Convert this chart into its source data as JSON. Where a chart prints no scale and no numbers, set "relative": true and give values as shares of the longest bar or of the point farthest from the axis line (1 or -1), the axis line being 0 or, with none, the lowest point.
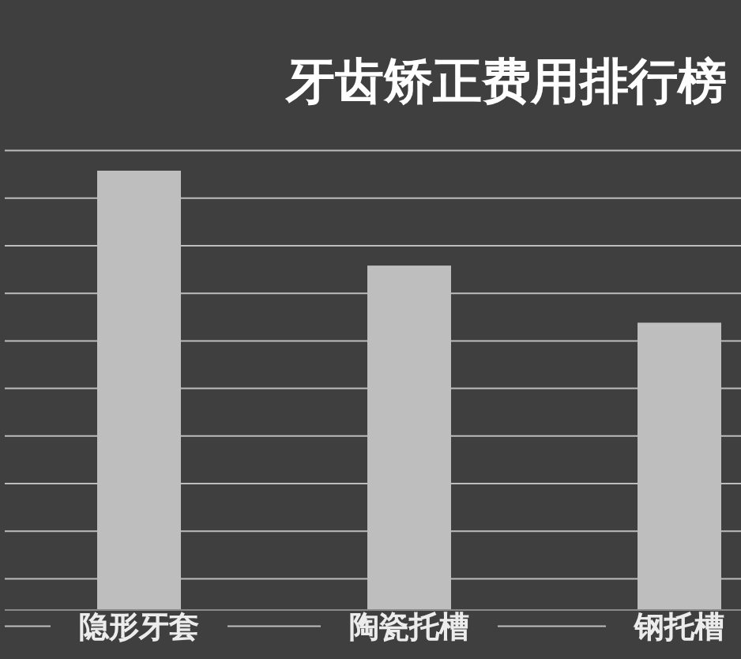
{
  "chart_data": {
    "type": "bar",
    "title": "牙齿矫正费用排行榜",
    "categories": [
      "隐形牙套",
      "陶瓷托槽",
      "钢托槽"
    ],
    "values": [
      1,
      0.784,
      0.654
    ],
    "color": "#bebebe",
    "relative": true,
    "grid": true
  }
}
